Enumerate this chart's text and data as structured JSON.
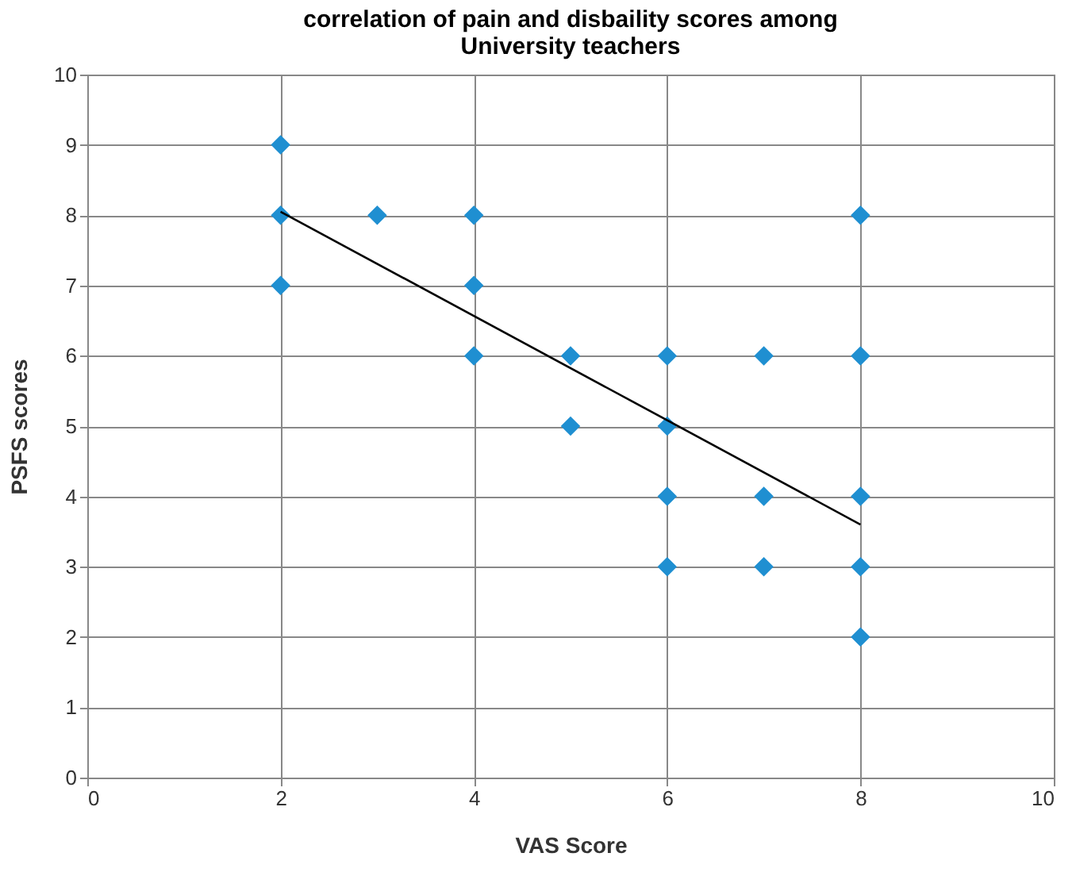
{
  "chart_data": {
    "type": "scatter",
    "title": [
      "correlation of pain and disbaility scores among",
      "University teachers"
    ],
    "xlabel": "VAS Score",
    "ylabel": "PSFS scores",
    "xlim": [
      0,
      10
    ],
    "ylim": [
      0,
      10
    ],
    "xticks": [
      0,
      2,
      4,
      6,
      8,
      10
    ],
    "yticks": [
      0,
      1,
      2,
      3,
      4,
      5,
      6,
      7,
      8,
      9,
      10
    ],
    "grid": true,
    "series": [
      {
        "color": "#1f8fd1",
        "marker": "diamond",
        "x": [
          2,
          2,
          2,
          3,
          4,
          4,
          4,
          5,
          5,
          6,
          6,
          6,
          6,
          7,
          7,
          7,
          8,
          8,
          8,
          8,
          8
        ],
        "values": [
          9,
          8,
          7,
          8,
          8,
          7,
          6,
          6,
          5,
          6,
          5,
          4,
          3,
          6,
          4,
          3,
          8,
          6,
          4,
          3,
          2
        ]
      },
      {
        "type": "line",
        "marker": "none",
        "color": "#000000",
        "x": [
          2,
          8
        ],
        "values": [
          8.05,
          3.6
        ]
      }
    ]
  }
}
